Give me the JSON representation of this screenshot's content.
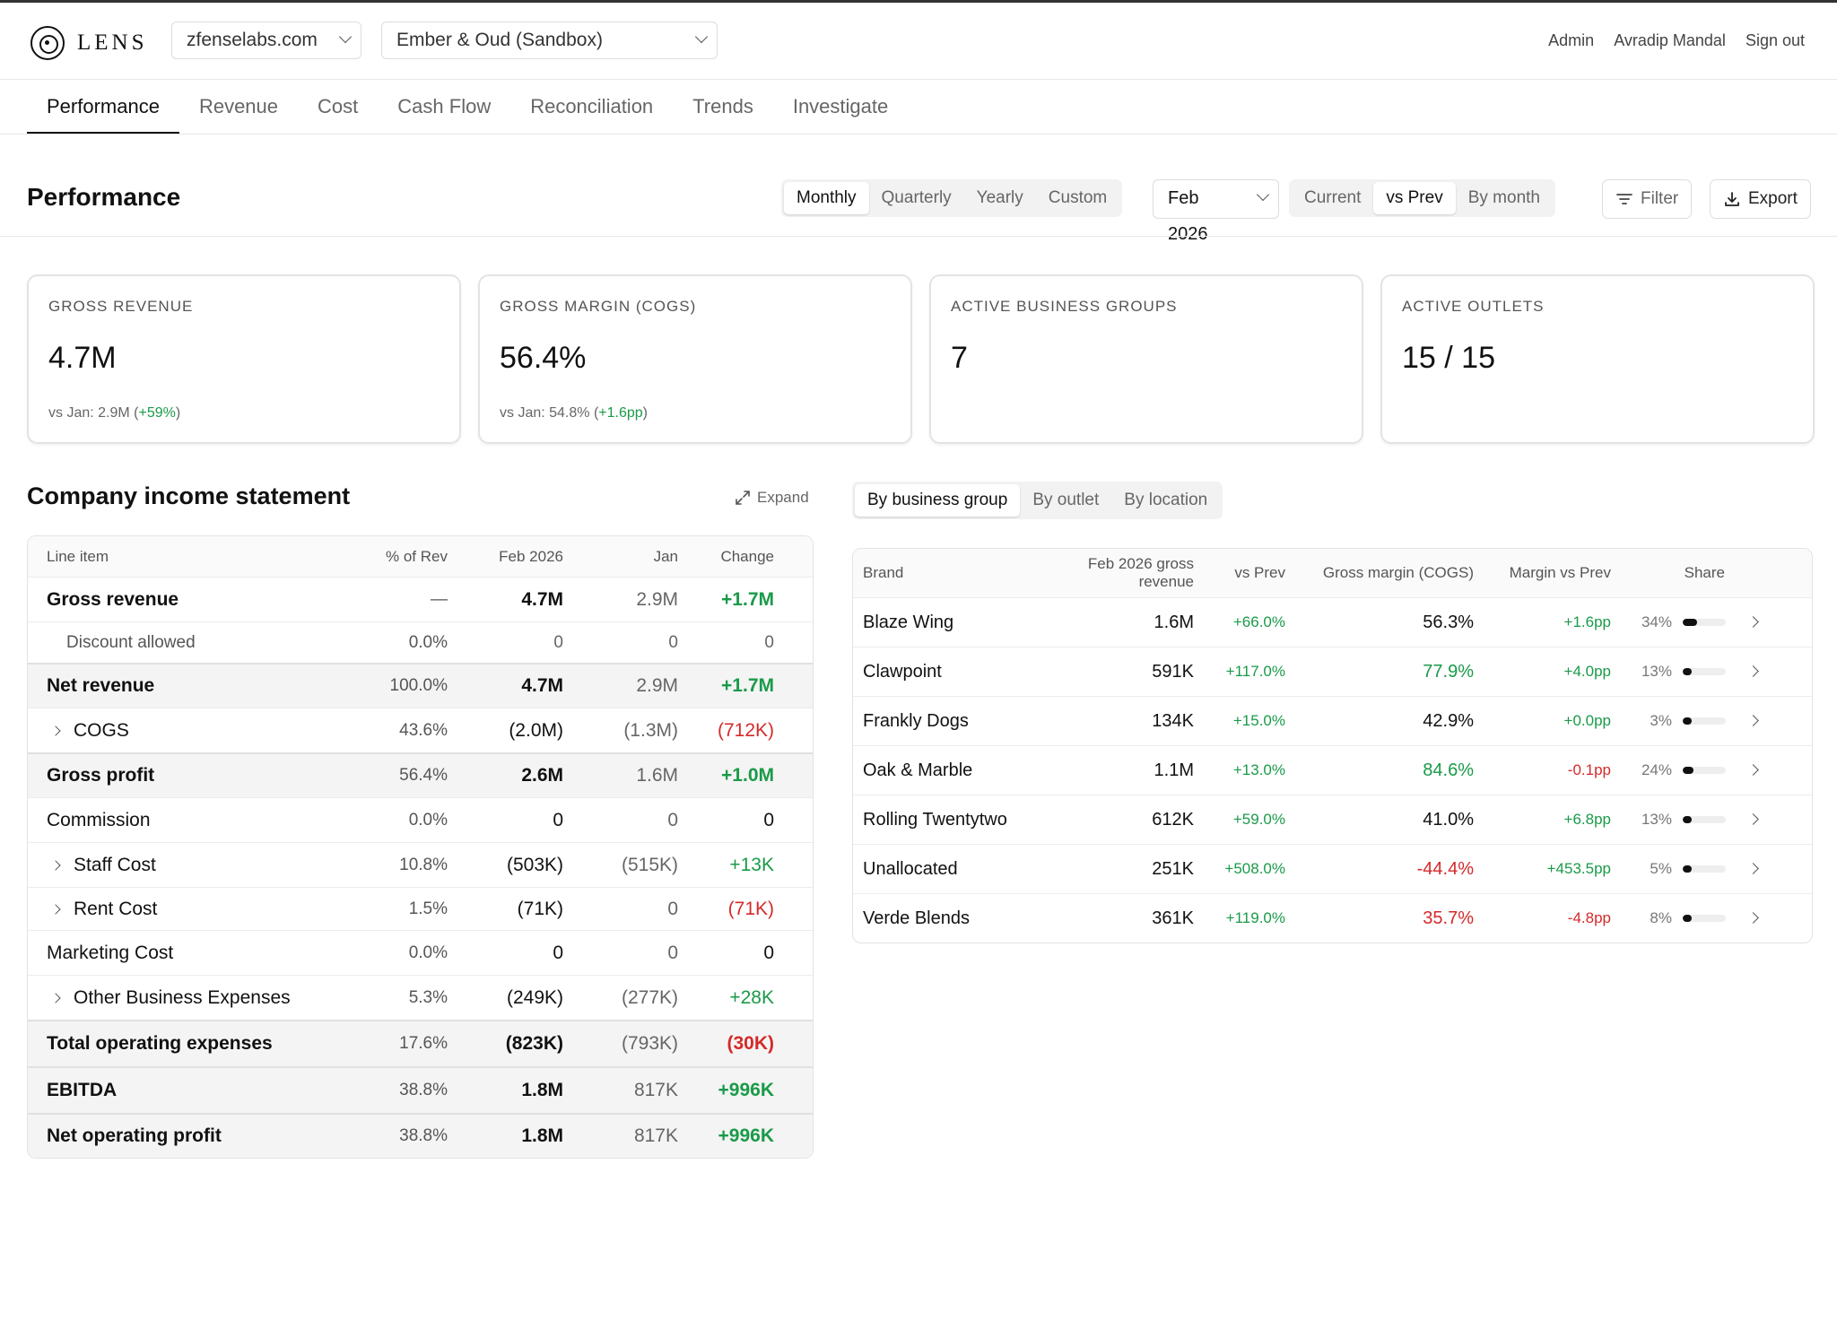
{
  "app": {
    "logo_text": "LENS"
  },
  "header": {
    "domain_select": "zfenselabs.com",
    "entity_select": "Ember & Oud (Sandbox)",
    "links": {
      "admin": "Admin",
      "user": "Avradip Mandal",
      "signout": "Sign out"
    }
  },
  "tabs": [
    "Performance",
    "Revenue",
    "Cost",
    "Cash Flow",
    "Reconciliation",
    "Trends",
    "Investigate"
  ],
  "active_tab": "Performance",
  "page": {
    "title": "Performance"
  },
  "period_seg": {
    "items": [
      "Monthly",
      "Quarterly",
      "Yearly",
      "Custom"
    ],
    "active": "Monthly"
  },
  "month_select": "Feb 2026",
  "compare_seg": {
    "items": [
      "Current",
      "vs Prev",
      "By month"
    ],
    "active": "vs Prev"
  },
  "buttons": {
    "filter": "Filter",
    "export": "Export"
  },
  "kpis": [
    {
      "label": "GROSS REVENUE",
      "value": "4.7M",
      "sub": "vs Jan: 2.9M (",
      "delta": "+59%",
      "tail": ")"
    },
    {
      "label": "GROSS MARGIN (COGS)",
      "value": "56.4%",
      "sub": "vs Jan: 54.8% (",
      "delta": "+1.6pp",
      "tail": ")"
    },
    {
      "label": "ACTIVE BUSINESS GROUPS",
      "value": "7"
    },
    {
      "label": "ACTIVE OUTLETS",
      "value": "15 / 15"
    }
  ],
  "income": {
    "title": "Company income statement",
    "expand": "Expand",
    "headers": [
      "Line item",
      "% of Rev",
      "Feb 2026",
      "Jan",
      "Change"
    ],
    "rows": [
      {
        "label": "Gross revenue",
        "pct": "—",
        "cur": "4.7M",
        "prev": "2.9M",
        "chg": "+1.7M",
        "tone": "pos",
        "bold": true,
        "shaded": false,
        "expand": false,
        "indent": false
      },
      {
        "label": "Discount allowed",
        "pct": "0.0%",
        "cur": "0",
        "prev": "0",
        "chg": "0",
        "tone": "",
        "bold": false,
        "shaded": false,
        "expand": false,
        "indent": true
      },
      {
        "label": "Net revenue",
        "pct": "100.0%",
        "cur": "4.7M",
        "prev": "2.9M",
        "chg": "+1.7M",
        "tone": "pos",
        "bold": true,
        "shaded": true,
        "expand": false,
        "indent": false
      },
      {
        "label": "COGS",
        "pct": "43.6%",
        "cur": "(2.0M)",
        "prev": "(1.3M)",
        "chg": "(712K)",
        "tone": "neg",
        "bold": false,
        "shaded": false,
        "expand": true,
        "indent": false
      },
      {
        "label": "Gross profit",
        "pct": "56.4%",
        "cur": "2.6M",
        "prev": "1.6M",
        "chg": "+1.0M",
        "tone": "pos",
        "bold": true,
        "shaded": true,
        "expand": false,
        "indent": false
      },
      {
        "label": "Commission",
        "pct": "0.0%",
        "cur": "0",
        "prev": "0",
        "chg": "0",
        "tone": "",
        "bold": false,
        "shaded": false,
        "expand": false,
        "indent": false
      },
      {
        "label": "Staff Cost",
        "pct": "10.8%",
        "cur": "(503K)",
        "prev": "(515K)",
        "chg": "+13K",
        "tone": "pos",
        "bold": false,
        "shaded": false,
        "expand": true,
        "indent": false
      },
      {
        "label": "Rent Cost",
        "pct": "1.5%",
        "cur": "(71K)",
        "prev": "0",
        "chg": "(71K)",
        "tone": "neg",
        "bold": false,
        "shaded": false,
        "expand": true,
        "indent": false
      },
      {
        "label": "Marketing Cost",
        "pct": "0.0%",
        "cur": "0",
        "prev": "0",
        "chg": "0",
        "tone": "",
        "bold": false,
        "shaded": false,
        "expand": false,
        "indent": false
      },
      {
        "label": "Other Business Expenses",
        "pct": "5.3%",
        "cur": "(249K)",
        "prev": "(277K)",
        "chg": "+28K",
        "tone": "pos",
        "bold": false,
        "shaded": false,
        "expand": true,
        "indent": false
      },
      {
        "label": "Total operating expenses",
        "pct": "17.6%",
        "cur": "(823K)",
        "prev": "(793K)",
        "chg": "(30K)",
        "tone": "neg",
        "bold": true,
        "shaded": true,
        "expand": false,
        "indent": false
      },
      {
        "label": "EBITDA",
        "pct": "38.8%",
        "cur": "1.8M",
        "prev": "817K",
        "chg": "+996K",
        "tone": "pos",
        "bold": true,
        "shaded": true,
        "expand": false,
        "indent": false
      },
      {
        "label": "Net operating profit",
        "pct": "38.8%",
        "cur": "1.8M",
        "prev": "817K",
        "chg": "+996K",
        "tone": "pos",
        "bold": true,
        "shaded": true,
        "expand": false,
        "indent": false
      }
    ]
  },
  "group_seg": {
    "items": [
      "By business group",
      "By outlet",
      "By location"
    ],
    "active": "By business group"
  },
  "brands": {
    "headers": [
      "Brand",
      "Feb 2026 gross revenue",
      "vs Prev",
      "Gross margin (COGS)",
      "Margin vs Prev",
      "Share"
    ],
    "rows": [
      {
        "brand": "Blaze Wing",
        "rev": "1.6M",
        "vs": "+66.0%",
        "margin": "56.3%",
        "margin_tone": "",
        "mvp": "+1.6pp",
        "mvp_tone": "pos",
        "share": "34%",
        "share_val": 0.34
      },
      {
        "brand": "Clawpoint",
        "rev": "591K",
        "vs": "+117.0%",
        "margin": "77.9%",
        "margin_tone": "pos",
        "mvp": "+4.0pp",
        "mvp_tone": "pos",
        "share": "13%",
        "share_val": 0.13
      },
      {
        "brand": "Frankly Dogs",
        "rev": "134K",
        "vs": "+15.0%",
        "margin": "42.9%",
        "margin_tone": "",
        "mvp": "+0.0pp",
        "mvp_tone": "pos",
        "share": "3%",
        "share_val": 0.03
      },
      {
        "brand": "Oak & Marble",
        "rev": "1.1M",
        "vs": "+13.0%",
        "margin": "84.6%",
        "margin_tone": "pos",
        "mvp": "-0.1pp",
        "mvp_tone": "neg",
        "share": "24%",
        "share_val": 0.24
      },
      {
        "brand": "Rolling Twentytwo",
        "rev": "612K",
        "vs": "+59.0%",
        "margin": "41.0%",
        "margin_tone": "",
        "mvp": "+6.8pp",
        "mvp_tone": "pos",
        "share": "13%",
        "share_val": 0.13
      },
      {
        "brand": "Unallocated",
        "rev": "251K",
        "vs": "+508.0%",
        "margin": "-44.4%",
        "margin_tone": "neg",
        "mvp": "+453.5pp",
        "mvp_tone": "pos",
        "share": "5%",
        "share_val": 0.05
      },
      {
        "brand": "Verde Blends",
        "rev": "361K",
        "vs": "+119.0%",
        "margin": "35.7%",
        "margin_tone": "neg",
        "mvp": "-4.8pp",
        "mvp_tone": "neg",
        "share": "8%",
        "share_val": 0.08
      }
    ]
  },
  "colors": {
    "positive": "#1a9a49",
    "negative": "#d42a2a",
    "accent": "#111111"
  },
  "icons": [
    "logo-icon",
    "chevron-down-icon",
    "filter-icon",
    "download-icon",
    "expand-icon",
    "chevron-right-icon"
  ]
}
